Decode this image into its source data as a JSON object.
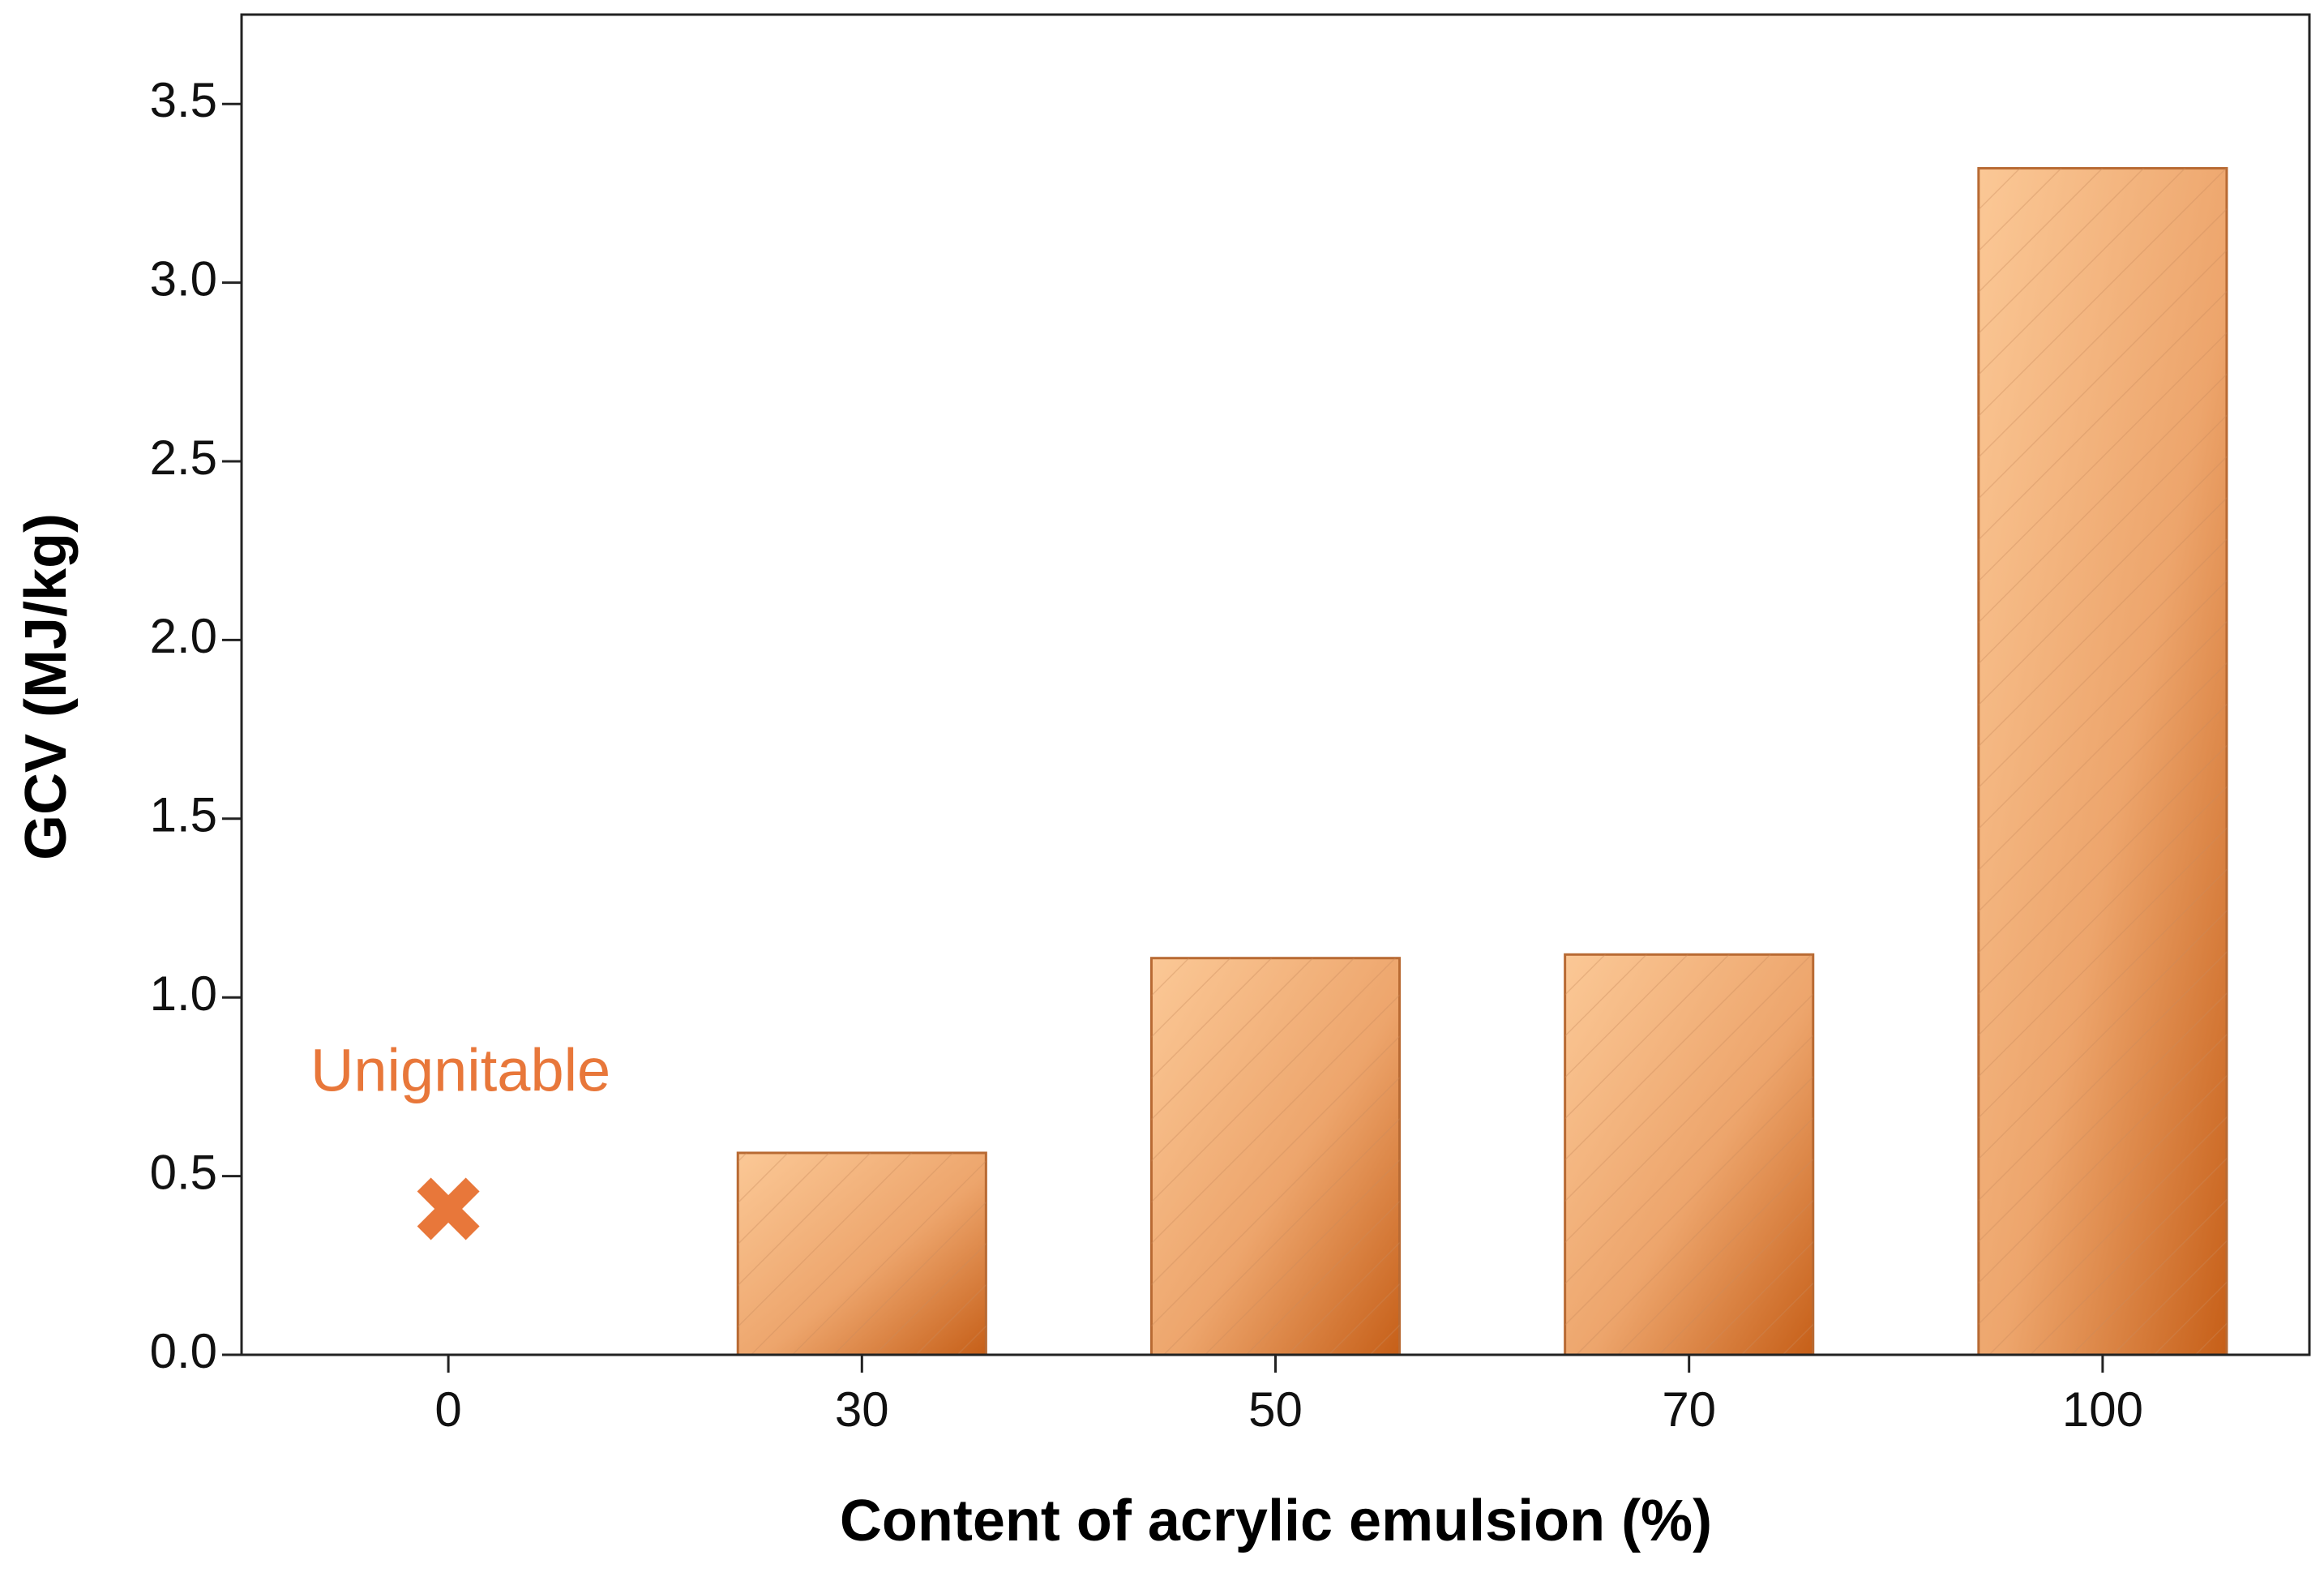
{
  "chart_data": {
    "type": "bar",
    "x_label": "Content of acrylic emulsion (%)",
    "y_label": "GCV (MJ/kg)",
    "categories": [
      "0",
      "30",
      "50",
      "70",
      "100"
    ],
    "values": [
      null,
      0.565,
      1.11,
      1.12,
      3.32
    ],
    "color": "#b86a33",
    "ylim": [
      0,
      3.75
    ],
    "yticks": [
      {
        "value": 0,
        "label": "0.0"
      },
      0.5,
      {
        "value": 1,
        "label": "1.0"
      },
      1.5,
      {
        "value": 2,
        "label": "2.0"
      },
      2.5,
      {
        "value": 3,
        "label": "3.0"
      },
      3.5
    ],
    "grid": false,
    "annotation": {
      "text": "Unignitable",
      "color": "#e8773a"
    }
  }
}
